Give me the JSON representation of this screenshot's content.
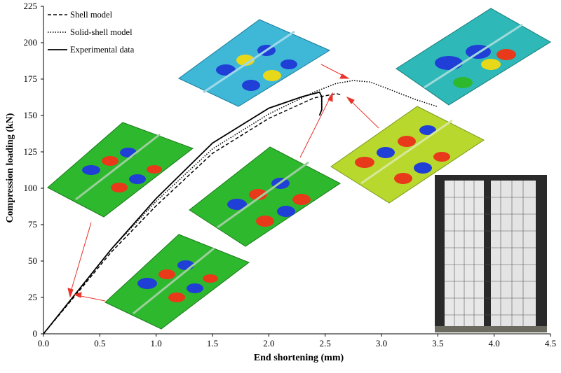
{
  "chart_data": {
    "type": "line",
    "xlabel": "End shortening (mm)",
    "ylabel": "Compression loading (kN)",
    "xlim": [
      0,
      4.5
    ],
    "ylim": [
      0,
      225
    ],
    "xticks": [
      "0.0",
      "0.5",
      "1.0",
      "1.5",
      "2.0",
      "2.5",
      "3.0",
      "3.5",
      "4.0",
      "4.5"
    ],
    "yticks": [
      "0",
      "25",
      "50",
      "75",
      "100",
      "125",
      "150",
      "175",
      "200",
      "225"
    ],
    "grid": false,
    "legend_position": "top-left",
    "series": [
      {
        "name": "Shell model",
        "style": "dashed",
        "color": "#000000",
        "x": [
          0.0,
          0.3,
          0.6,
          1.0,
          1.5,
          2.0,
          2.4,
          2.6,
          2.65
        ],
        "y": [
          0,
          28,
          56,
          88,
          124,
          148,
          162,
          165,
          164
        ]
      },
      {
        "name": "Solid-shell model",
        "style": "dotted",
        "color": "#000000",
        "x": [
          0.0,
          0.3,
          0.6,
          1.0,
          1.5,
          2.0,
          2.4,
          2.6,
          2.75,
          2.9,
          3.1,
          3.3,
          3.5
        ],
        "y": [
          0,
          29,
          58,
          91,
          127,
          151,
          166,
          172,
          174,
          173,
          167,
          161,
          156
        ]
      },
      {
        "name": "Experimental data",
        "style": "solid",
        "color": "#000000",
        "x": [
          0.0,
          0.3,
          0.6,
          1.0,
          1.5,
          2.0,
          2.3,
          2.45,
          2.47,
          2.47,
          2.45
        ],
        "y": [
          0,
          29,
          58,
          93,
          131,
          155,
          163,
          166,
          163,
          154,
          150
        ]
      }
    ]
  }
}
